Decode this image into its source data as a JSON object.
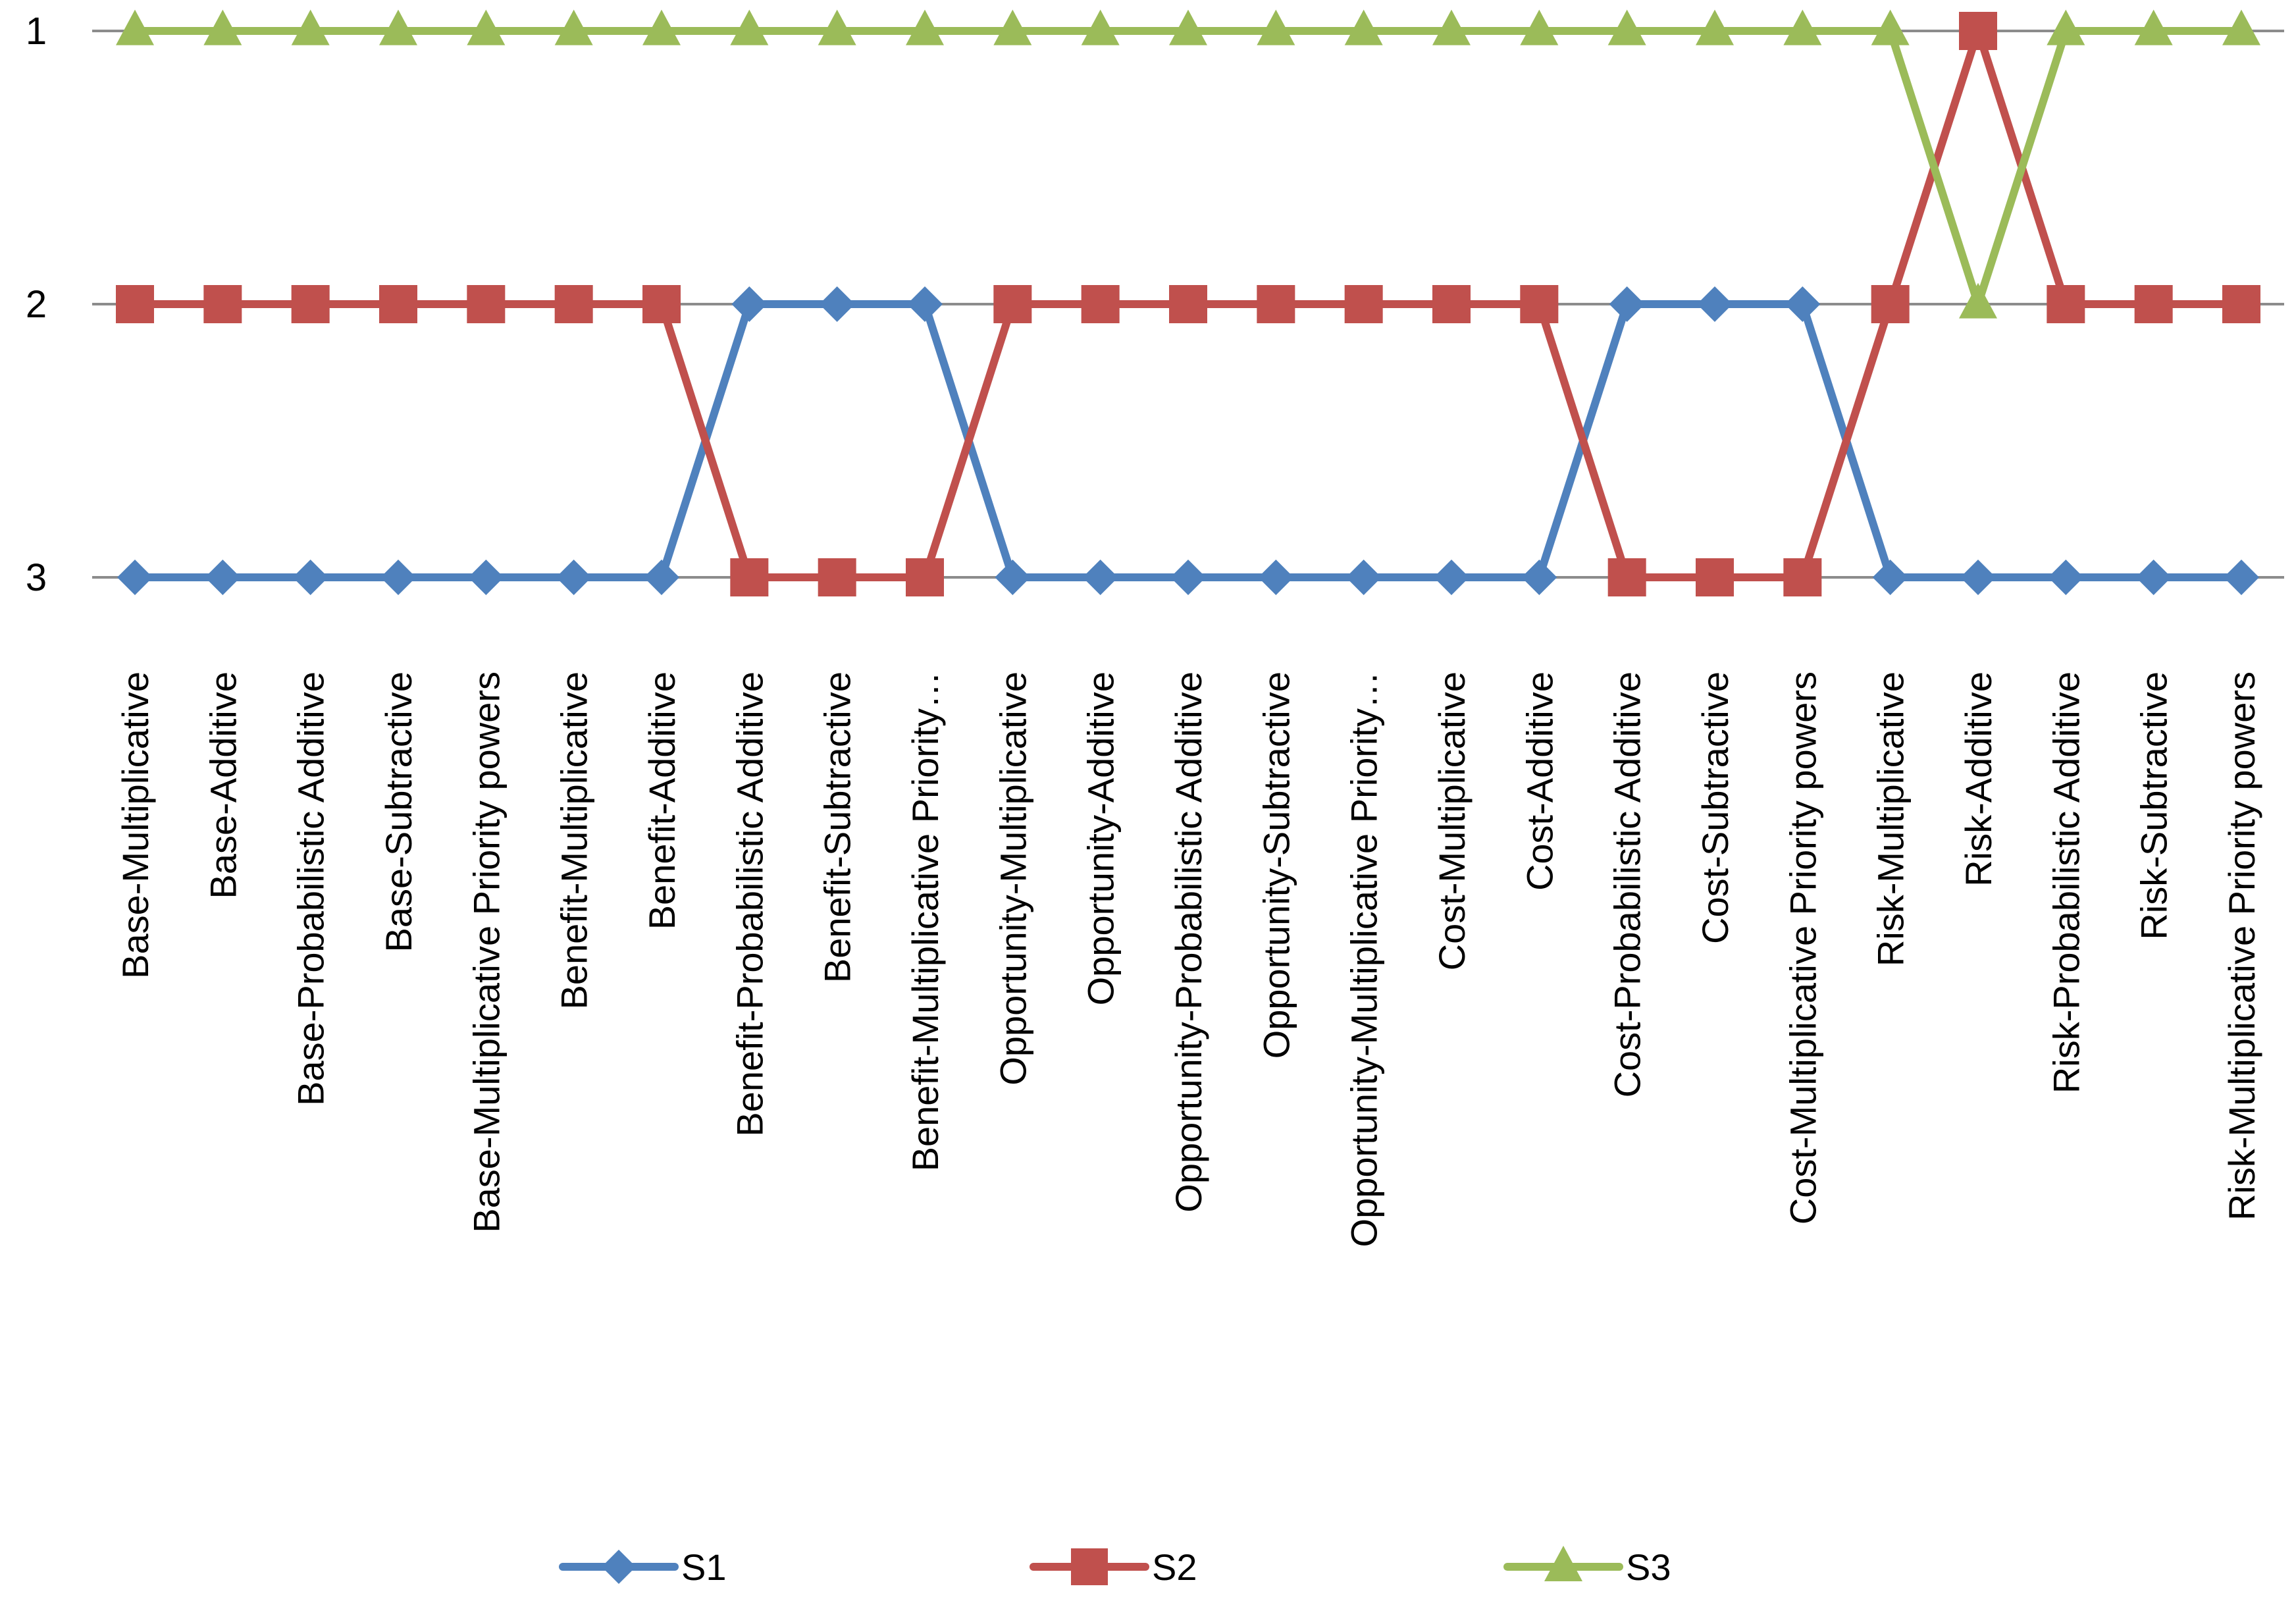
{
  "chart_data": {
    "type": "line",
    "title": "",
    "xlabel": "",
    "ylabel": "",
    "y_reversed": true,
    "ylim": [
      1,
      3
    ],
    "yticks": [
      "1",
      "2",
      "3"
    ],
    "grid": true,
    "legend_position": "bottom",
    "categories": [
      "Base-Multiplicative",
      "Base-Additive",
      "Base-Probabilistic Additive",
      "Base-Subtractive",
      "Base-Multiplicative Priority powers",
      "Benefit-Multiplicative",
      "Benefit-Additive",
      "Benefit-Probabilistic Additive",
      "Benefit-Subtractive",
      "Benefit-Multiplicative Priority…",
      "Opportunity-Multiplicative",
      "Opportunity-Additive",
      "Opportunity-Probabilistic Additive",
      "Opportunity-Subtractive",
      "Opportunity-Multiplicative Priority…",
      "Cost-Multiplicative",
      "Cost-Additive",
      "Cost-Probabilistic Additive",
      "Cost-Subtractive",
      "Cost-Multiplicative Priority powers",
      "Risk-Multiplicative",
      "Risk-Additive",
      "Risk-Probabilistic Additive",
      "Risk-Subtractive",
      "Risk-Multiplicative Priority powers"
    ],
    "series": [
      {
        "name": "S1",
        "color": "#4f81bd",
        "marker": "diamond",
        "values": [
          3,
          3,
          3,
          3,
          3,
          3,
          3,
          2,
          2,
          2,
          3,
          3,
          3,
          3,
          3,
          3,
          3,
          2,
          2,
          2,
          3,
          3,
          3,
          3,
          3
        ]
      },
      {
        "name": "S2",
        "color": "#c0504d",
        "marker": "square",
        "values": [
          2,
          2,
          2,
          2,
          2,
          2,
          2,
          3,
          3,
          3,
          2,
          2,
          2,
          2,
          2,
          2,
          2,
          3,
          3,
          3,
          2,
          1,
          2,
          2,
          2
        ]
      },
      {
        "name": "S3",
        "color": "#9bbb59",
        "marker": "triangle",
        "values": [
          1,
          1,
          1,
          1,
          1,
          1,
          1,
          1,
          1,
          1,
          1,
          1,
          1,
          1,
          1,
          1,
          1,
          1,
          1,
          1,
          1,
          2,
          1,
          1,
          1
        ]
      }
    ]
  }
}
